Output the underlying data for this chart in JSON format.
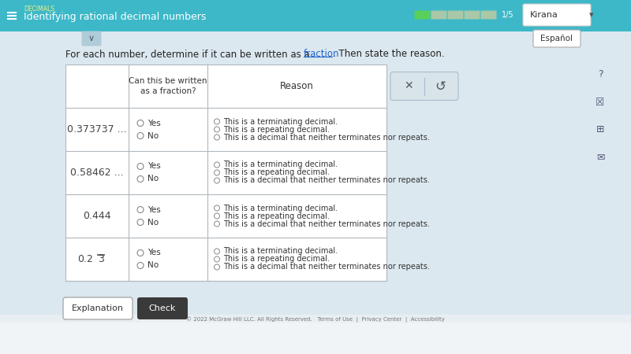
{
  "bg_color": "#dce8ef",
  "page_bg": "#f0f4f7",
  "header_bg": "#3db8c8",
  "header_text": "Identifying rational decimal numbers",
  "header_subtext": "DECIMALS",
  "question_pre": "For each number, determine if it can be written as a ",
  "question_link": "fraction",
  "question_post": ". Then state the reason.",
  "table_header_col1": "Can this be written\nas a fraction?",
  "table_header_col2": "Reason",
  "rows": [
    {
      "number": "0.373737 ...",
      "overline": false
    },
    {
      "number": "0.58462 ...",
      "overline": false
    },
    {
      "number": "0.444",
      "overline": false
    },
    {
      "number": "0.23",
      "overline": true
    }
  ],
  "reasons": [
    "This is a terminating decimal.",
    "This is a repeating decimal.",
    "This is a decimal that neither terminates nor repeats."
  ],
  "button1_text": "Explanation",
  "button2_text": "Check",
  "button1_bg": "#ffffff",
  "button2_bg": "#3a3a3a",
  "button2_text_color": "#ffffff",
  "progress_color": "#5ad05a",
  "progress_gray": "#a8c8a8",
  "progress_total": 5,
  "progress_done": 1,
  "table_border": "#b0b8be",
  "table_bg": "#ffffff",
  "row_number_color": "#444444",
  "radio_color": "#888888",
  "reason_text_color": "#333333",
  "espanol_text": "Español",
  "kirana_text": "Kirana",
  "copyright": "© 2022 McGraw Hill LLC. All Rights Reserved.   Terms of Use  |  Privacy Center  |  Accessibility"
}
